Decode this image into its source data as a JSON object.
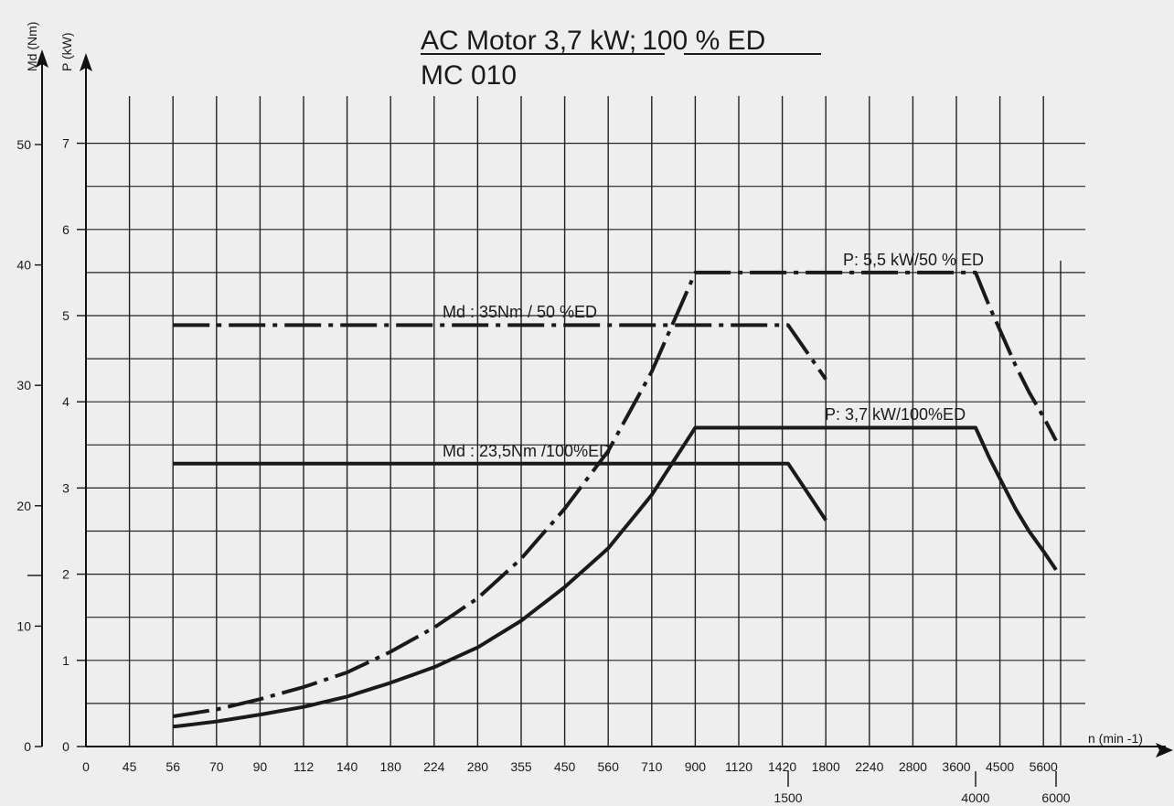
{
  "chart_data": {
    "type": "line",
    "title": "AC Motor 3,7 kW",
    "title_sep": ";",
    "title_part2": "100 % ED",
    "subtitle": "MC 010",
    "xlabel": "n (min -1)",
    "ylabel_left": "Md (Nm)",
    "ylabel_right": "P (kW)",
    "x_scale": "categorical (non-linear speed steps)",
    "x_ticks": [
      "0",
      "45",
      "56",
      "70",
      "90",
      "112",
      "140",
      "180",
      "224",
      "280",
      "355",
      "450",
      "560",
      "710",
      "900",
      "1120",
      "1420",
      "1800",
      "2240",
      "2800",
      "3600",
      "4500",
      "5600"
    ],
    "x_extra_ticks": [
      "1500",
      "4000",
      "6000"
    ],
    "md_ticks": [
      "0",
      "10",
      "20",
      "30",
      "40",
      "50"
    ],
    "p_ticks": [
      "0",
      "1",
      "2",
      "3",
      "4",
      "5",
      "6",
      "7"
    ],
    "md_range": [
      0,
      50
    ],
    "p_range": [
      0,
      7
    ],
    "grid": true,
    "annotations": {
      "md50": "Md :   35Nm / 50 %ED",
      "md100": "Md :  23,5Nm /100%ED",
      "p50": "P: 5,5 kW/50 % ED",
      "p100": "P: 3,7 kW/100%ED"
    },
    "series": [
      {
        "key": "p50",
        "name": "P: 5,5 kW/50 % ED",
        "axis": "P",
        "style": "dash-dot",
        "points": [
          [
            56,
            0.35
          ],
          [
            70,
            0.43
          ],
          [
            90,
            0.55
          ],
          [
            112,
            0.69
          ],
          [
            140,
            0.86
          ],
          [
            180,
            1.1
          ],
          [
            224,
            1.38
          ],
          [
            280,
            1.72
          ],
          [
            355,
            2.18
          ],
          [
            450,
            2.76
          ],
          [
            560,
            3.43
          ],
          [
            710,
            4.35
          ],
          [
            900,
            5.5
          ],
          [
            1500,
            5.5
          ],
          [
            4000,
            5.5
          ],
          [
            6000,
            3.55
          ]
        ]
      },
      {
        "key": "p100",
        "name": "P: 3,7 kW/100%ED",
        "axis": "P",
        "style": "solid",
        "points": [
          [
            56,
            0.23
          ],
          [
            70,
            0.29
          ],
          [
            90,
            0.37
          ],
          [
            112,
            0.46
          ],
          [
            140,
            0.58
          ],
          [
            180,
            0.74
          ],
          [
            224,
            0.92
          ],
          [
            280,
            1.15
          ],
          [
            355,
            1.46
          ],
          [
            450,
            1.85
          ],
          [
            560,
            2.3
          ],
          [
            710,
            2.92
          ],
          [
            900,
            3.7
          ],
          [
            1500,
            3.7
          ],
          [
            4000,
            3.7
          ],
          [
            6000,
            2.05
          ]
        ]
      },
      {
        "key": "md50",
        "name": "Md :   35Nm / 50 %ED",
        "axis": "Md",
        "style": "dash-dot",
        "points": [
          [
            56,
            35
          ],
          [
            1500,
            35
          ],
          [
            1800,
            30.5
          ]
        ]
      },
      {
        "key": "md100",
        "name": "Md :  23,5Nm /100%ED",
        "axis": "Md",
        "style": "solid",
        "points": [
          [
            56,
            23.5
          ],
          [
            1500,
            23.5
          ],
          [
            1800,
            18.8
          ]
        ]
      }
    ]
  }
}
